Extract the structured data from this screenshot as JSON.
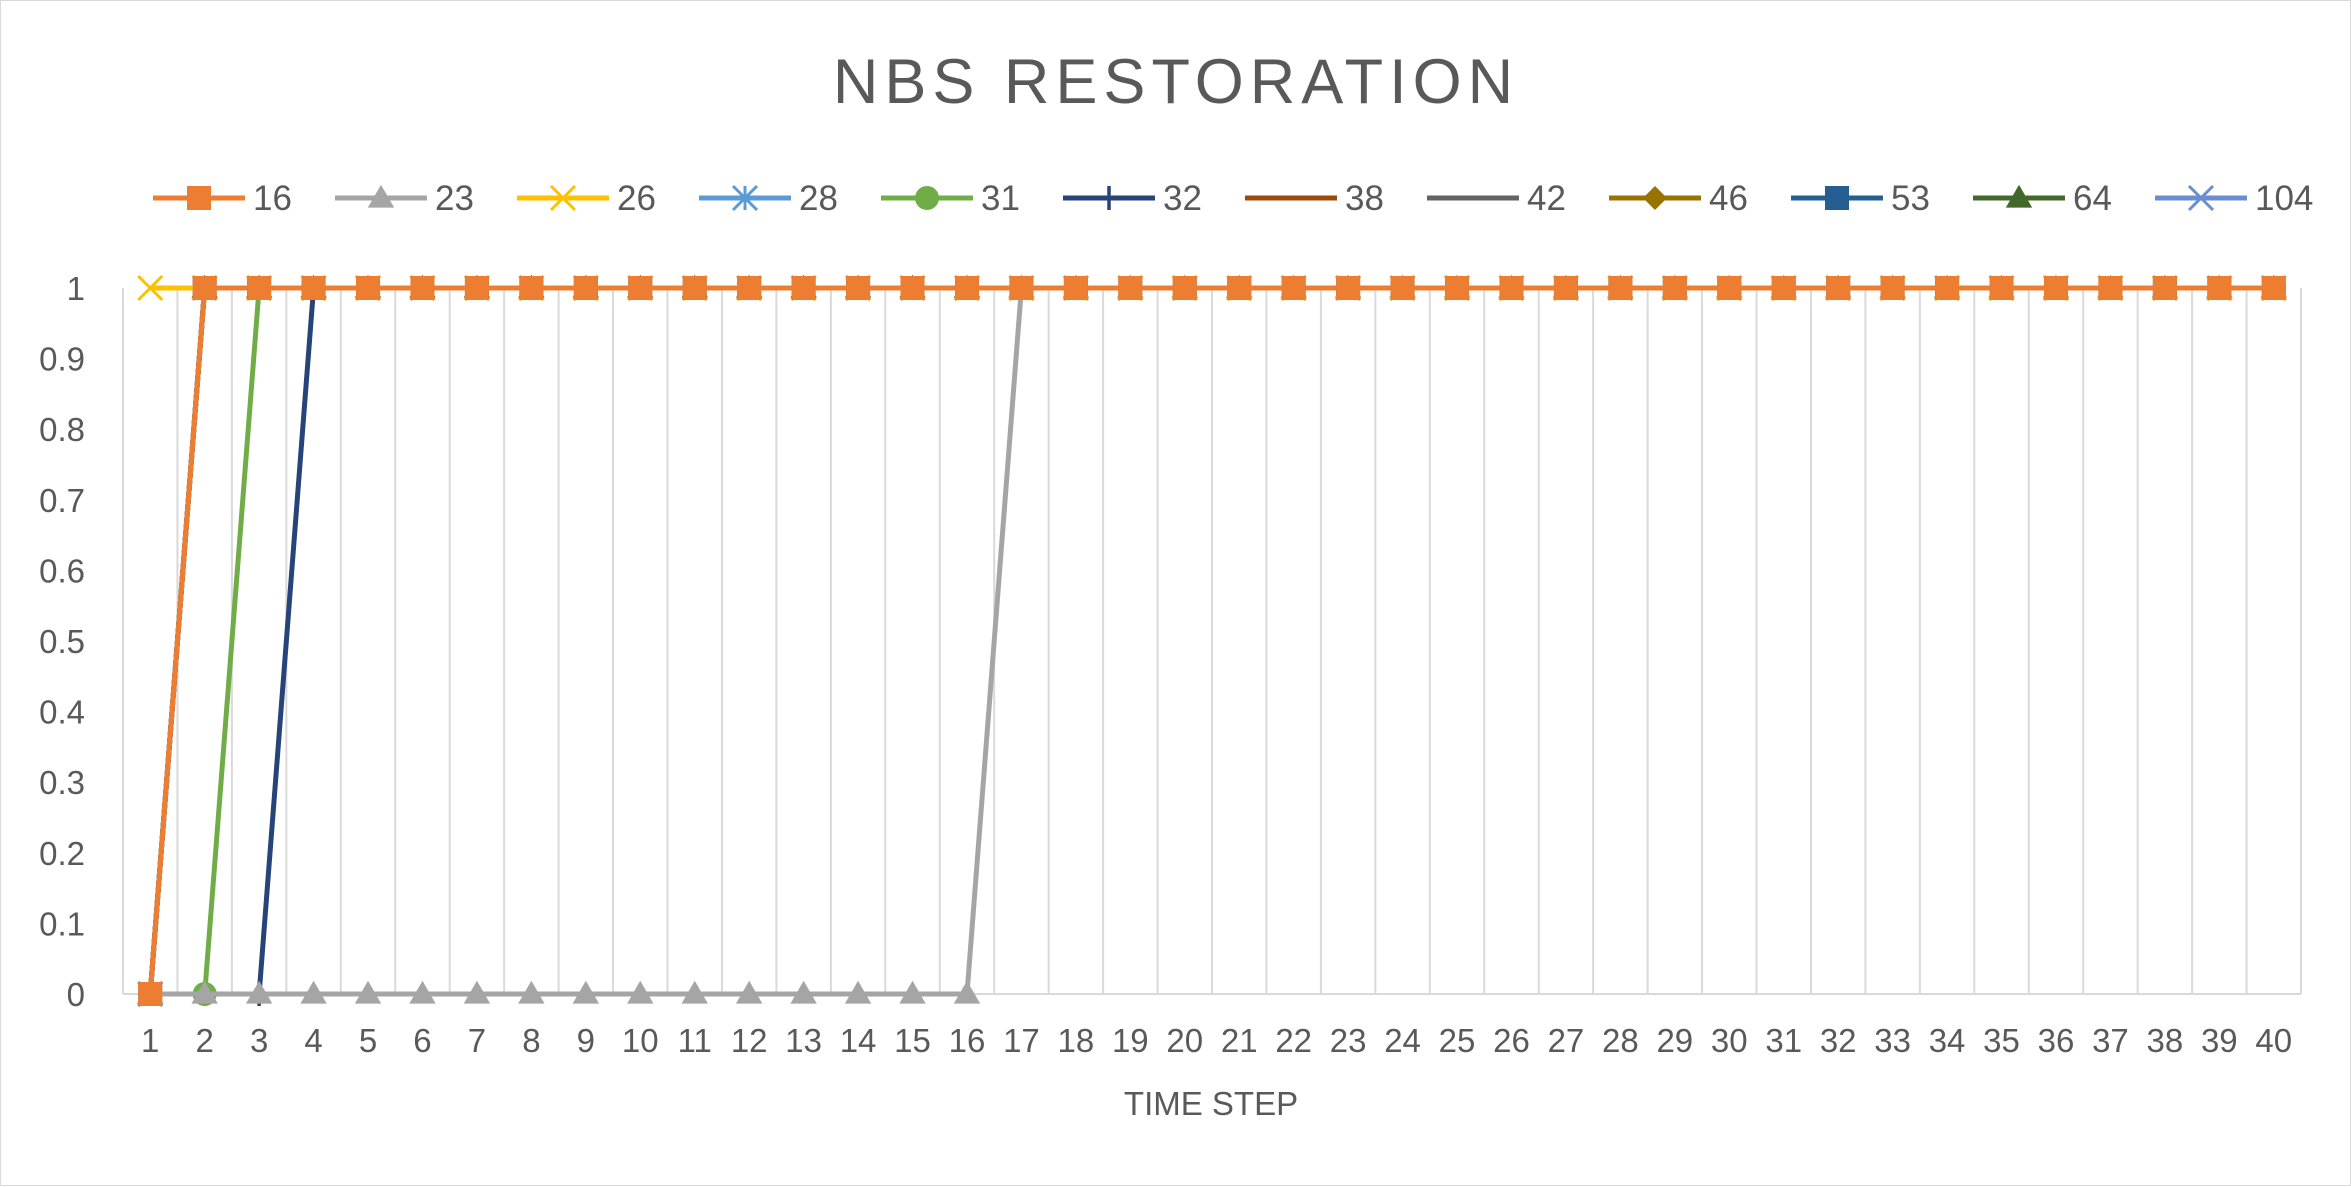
{
  "chart_data": {
    "type": "line",
    "title": "NBS RESTORATION",
    "xlabel": "TIME STEP",
    "ylabel": "",
    "x": [
      1,
      2,
      3,
      4,
      5,
      6,
      7,
      8,
      9,
      10,
      11,
      12,
      13,
      14,
      15,
      16,
      17,
      18,
      19,
      20,
      21,
      22,
      23,
      24,
      25,
      26,
      27,
      28,
      29,
      30,
      31,
      32,
      33,
      34,
      35,
      36,
      37,
      38,
      39,
      40
    ],
    "ylim": [
      0,
      1
    ],
    "yticks": [
      "0",
      "0.1",
      "0.2",
      "0.3",
      "0.4",
      "0.5",
      "0.6",
      "0.7",
      "0.8",
      "0.9",
      "1"
    ],
    "grid": "vertical",
    "legend_position": "top",
    "series": [
      {
        "name": "16",
        "color": "#ED7D31",
        "marker": "square",
        "restored_at": 2
      },
      {
        "name": "23",
        "color": "#A5A5A5",
        "marker": "triangle",
        "restored_at": 17
      },
      {
        "name": "26",
        "color": "#FFC000",
        "marker": "x",
        "restored_at": 1
      },
      {
        "name": "28",
        "color": "#5B9BD5",
        "marker": "star",
        "restored_at": 2
      },
      {
        "name": "31",
        "color": "#70AD47",
        "marker": "circle",
        "restored_at": 3
      },
      {
        "name": "32",
        "color": "#264478",
        "marker": "plus",
        "restored_at": 4
      },
      {
        "name": "38",
        "color": "#9E480E",
        "marker": "none",
        "restored_at": 2
      },
      {
        "name": "42",
        "color": "#636363",
        "marker": "none",
        "restored_at": 2
      },
      {
        "name": "46",
        "color": "#997300",
        "marker": "diamond",
        "restored_at": 2
      },
      {
        "name": "53",
        "color": "#255E91",
        "marker": "square",
        "restored_at": 2
      },
      {
        "name": "64",
        "color": "#43682B",
        "marker": "triangle",
        "restored_at": 2
      },
      {
        "name": "104",
        "color": "#698ED0",
        "marker": "x",
        "restored_at": 2
      }
    ]
  }
}
